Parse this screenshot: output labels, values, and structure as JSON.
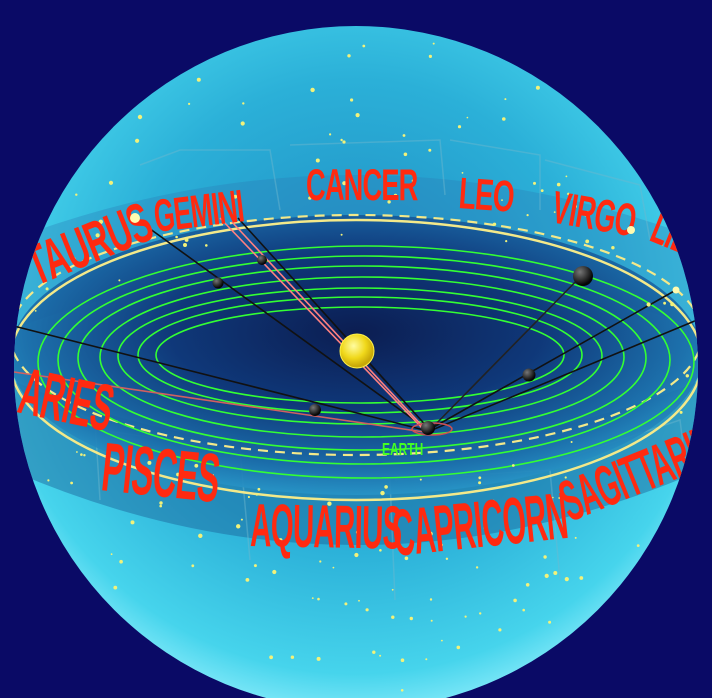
{
  "colors": {
    "background": "#0a0a66",
    "sphere_light": "#3fd2ea",
    "sphere_dark": "#0f5f9a",
    "inner_dark": "#0a1a50",
    "zodiac_text": "#ff2a10",
    "orbit": "#33ff33",
    "ecliptic": "#f3e98a",
    "sun": "#f3e21a",
    "earth_label": "#44ff22",
    "stars": "#f2f27a"
  },
  "constellations": {
    "taurus": "TAURUS",
    "gemini": "GEMINI",
    "cancer": "CANCER",
    "leo": "LEO",
    "virgo": "VIRGO",
    "libra": "LIBRA",
    "aries": "ARIES",
    "pisces": "PISCES",
    "aquarius": "AQUARIUS",
    "capricorn": "CAPRICORN",
    "sagittarius": "SAGITTARIUS"
  },
  "earth_label": "EARTH",
  "objects": {
    "sun": "sun",
    "earth": "earth",
    "planets": 5
  }
}
